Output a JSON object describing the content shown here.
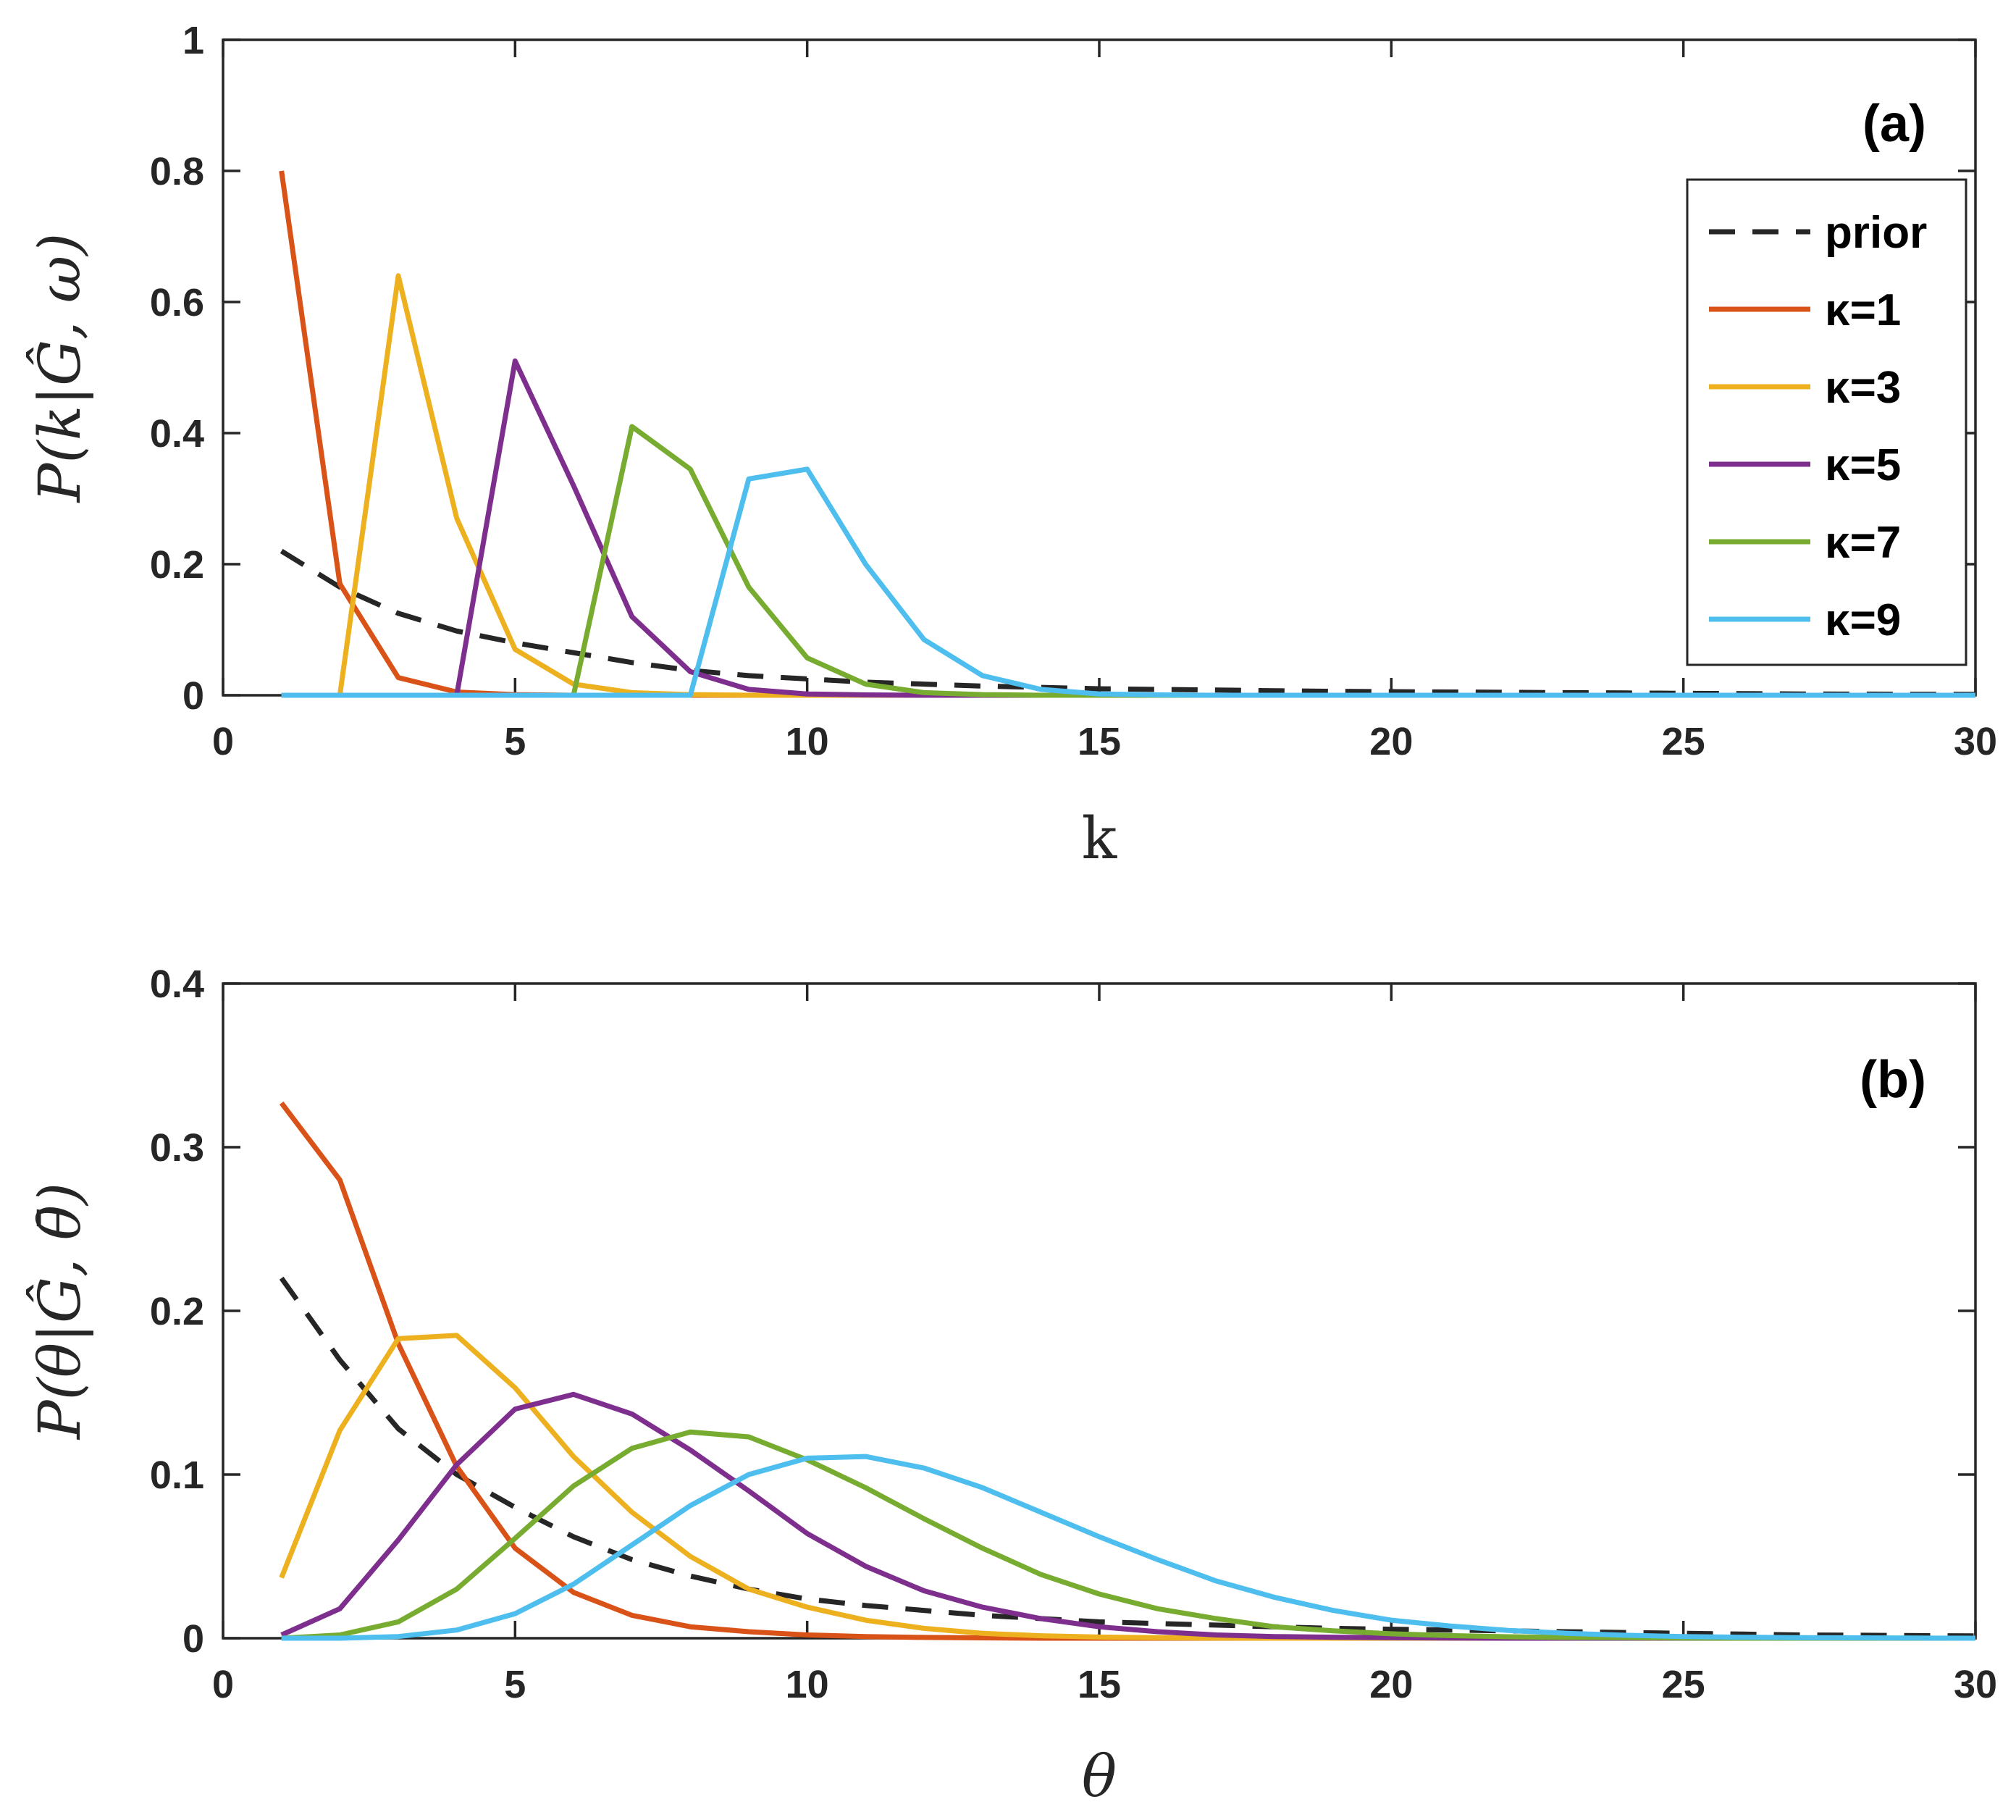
{
  "chart_data": [
    {
      "type": "line",
      "panel_label": "(a)",
      "xlabel": "k",
      "ylabel": "P(k|Ĝ, ω)",
      "xlim": [
        0,
        30
      ],
      "ylim": [
        0,
        1
      ],
      "xticks": [
        "0",
        "5",
        "10",
        "15",
        "20",
        "25",
        "30"
      ],
      "yticks": [
        "0",
        "0.2",
        "0.4",
        "0.6",
        "0.8",
        "1"
      ],
      "legend_position": "top-right",
      "x": [
        1,
        2,
        3,
        4,
        5,
        6,
        7,
        8,
        9,
        10,
        11,
        12,
        13,
        14,
        15,
        16,
        17,
        18,
        19,
        20,
        21,
        22,
        23,
        24,
        25,
        26,
        27,
        28,
        29,
        30
      ],
      "series": [
        {
          "name": "prior",
          "color": "#262626",
          "dashed": true,
          "values": [
            0.22,
            0.165,
            0.125,
            0.098,
            0.08,
            0.065,
            0.05,
            0.038,
            0.03,
            0.025,
            0.02,
            0.017,
            0.014,
            0.012,
            0.01,
            0.009,
            0.008,
            0.007,
            0.006,
            0.0055,
            0.005,
            0.0045,
            0.004,
            0.0035,
            0.003,
            0.0025,
            0.002,
            0.0018,
            0.0016,
            0.0014
          ]
        },
        {
          "name": "κ=1",
          "color": "#D95319",
          "values": [
            0.8,
            0.17,
            0.027,
            0.005,
            0.001,
            0,
            0,
            0,
            0,
            0,
            0,
            0,
            0,
            0,
            0,
            0,
            0,
            0,
            0,
            0,
            0,
            0,
            0,
            0,
            0,
            0,
            0,
            0,
            0,
            0
          ]
        },
        {
          "name": "κ=3",
          "color": "#EDB120",
          "values": [
            0,
            0,
            0.64,
            0.27,
            0.07,
            0.017,
            0.004,
            0.001,
            0,
            0,
            0,
            0,
            0,
            0,
            0,
            0,
            0,
            0,
            0,
            0,
            0,
            0,
            0,
            0,
            0,
            0,
            0,
            0,
            0,
            0
          ]
        },
        {
          "name": "κ=5",
          "color": "#7E2F8E",
          "values": [
            0,
            0,
            0,
            0,
            0.51,
            0.32,
            0.12,
            0.036,
            0.009,
            0.002,
            0.0005,
            0,
            0,
            0,
            0,
            0,
            0,
            0,
            0,
            0,
            0,
            0,
            0,
            0,
            0,
            0,
            0,
            0,
            0,
            0
          ]
        },
        {
          "name": "κ=7",
          "color": "#77AC30",
          "values": [
            0,
            0,
            0,
            0,
            0,
            0,
            0.41,
            0.345,
            0.165,
            0.057,
            0.017,
            0.004,
            0.001,
            0,
            0,
            0,
            0,
            0,
            0,
            0,
            0,
            0,
            0,
            0,
            0,
            0,
            0,
            0,
            0,
            0
          ]
        },
        {
          "name": "κ=9",
          "color": "#4DBEEE",
          "values": [
            0,
            0,
            0,
            0,
            0,
            0,
            0,
            0,
            0.33,
            0.345,
            0.2,
            0.085,
            0.03,
            0.009,
            0.002,
            0.0005,
            0,
            0,
            0,
            0,
            0,
            0,
            0,
            0,
            0,
            0,
            0,
            0,
            0,
            0
          ]
        }
      ]
    },
    {
      "type": "line",
      "panel_label": "(b)",
      "xlabel": "θ",
      "ylabel": "P(θ|Ĝ, θ̄)",
      "xlim": [
        0,
        30
      ],
      "ylim": [
        0,
        0.4
      ],
      "xticks": [
        "0",
        "5",
        "10",
        "15",
        "20",
        "25",
        "30"
      ],
      "yticks": [
        "0",
        "0.1",
        "0.2",
        "0.3",
        "0.4"
      ],
      "x": [
        1,
        2,
        3,
        4,
        5,
        6,
        7,
        8,
        9,
        10,
        11,
        12,
        13,
        14,
        15,
        16,
        17,
        18,
        19,
        20,
        21,
        22,
        23,
        24,
        25,
        26,
        27,
        28,
        29,
        30
      ],
      "series": [
        {
          "name": "prior",
          "color": "#262626",
          "dashed": true,
          "values": [
            0.22,
            0.17,
            0.128,
            0.1,
            0.08,
            0.062,
            0.048,
            0.038,
            0.03,
            0.024,
            0.02,
            0.017,
            0.014,
            0.012,
            0.01,
            0.009,
            0.008,
            0.007,
            0.006,
            0.0055,
            0.005,
            0.0045,
            0.004,
            0.0035,
            0.003,
            0.0025,
            0.002,
            0.0018,
            0.0016,
            0.0014
          ]
        },
        {
          "name": "κ=1",
          "color": "#D95319",
          "values": [
            0.327,
            0.28,
            0.18,
            0.105,
            0.055,
            0.028,
            0.014,
            0.007,
            0.004,
            0.002,
            0.001,
            0.0005,
            0.0002,
            0,
            0,
            0,
            0,
            0,
            0,
            0,
            0,
            0,
            0,
            0,
            0,
            0,
            0,
            0,
            0,
            0
          ]
        },
        {
          "name": "κ=3",
          "color": "#EDB120",
          "values": [
            0.037,
            0.127,
            0.183,
            0.185,
            0.153,
            0.111,
            0.077,
            0.05,
            0.03,
            0.019,
            0.011,
            0.006,
            0.003,
            0.0015,
            0.0007,
            0.0003,
            0.0001,
            0,
            0,
            0,
            0,
            0,
            0,
            0,
            0,
            0,
            0,
            0,
            0,
            0
          ]
        },
        {
          "name": "κ=5",
          "color": "#7E2F8E",
          "values": [
            0.002,
            0.018,
            0.06,
            0.106,
            0.14,
            0.149,
            0.137,
            0.115,
            0.09,
            0.064,
            0.044,
            0.029,
            0.019,
            0.012,
            0.007,
            0.004,
            0.002,
            0.001,
            0.0006,
            0.0003,
            0.0001,
            0,
            0,
            0,
            0,
            0,
            0,
            0,
            0,
            0
          ]
        },
        {
          "name": "κ=7",
          "color": "#77AC30",
          "values": [
            0,
            0.002,
            0.01,
            0.03,
            0.061,
            0.093,
            0.116,
            0.126,
            0.123,
            0.109,
            0.092,
            0.073,
            0.055,
            0.039,
            0.027,
            0.018,
            0.012,
            0.007,
            0.0045,
            0.0027,
            0.0016,
            0.0009,
            0.0005,
            0.0003,
            0.0001,
            0,
            0,
            0,
            0,
            0
          ]
        },
        {
          "name": "κ=9",
          "color": "#4DBEEE",
          "values": [
            0,
            0,
            0.001,
            0.005,
            0.015,
            0.033,
            0.057,
            0.081,
            0.1,
            0.11,
            0.111,
            0.104,
            0.092,
            0.077,
            0.062,
            0.048,
            0.035,
            0.025,
            0.017,
            0.011,
            0.0075,
            0.0048,
            0.003,
            0.0018,
            0.001,
            0.0006,
            0.0003,
            0.0002,
            0.0001,
            0
          ]
        }
      ]
    }
  ]
}
